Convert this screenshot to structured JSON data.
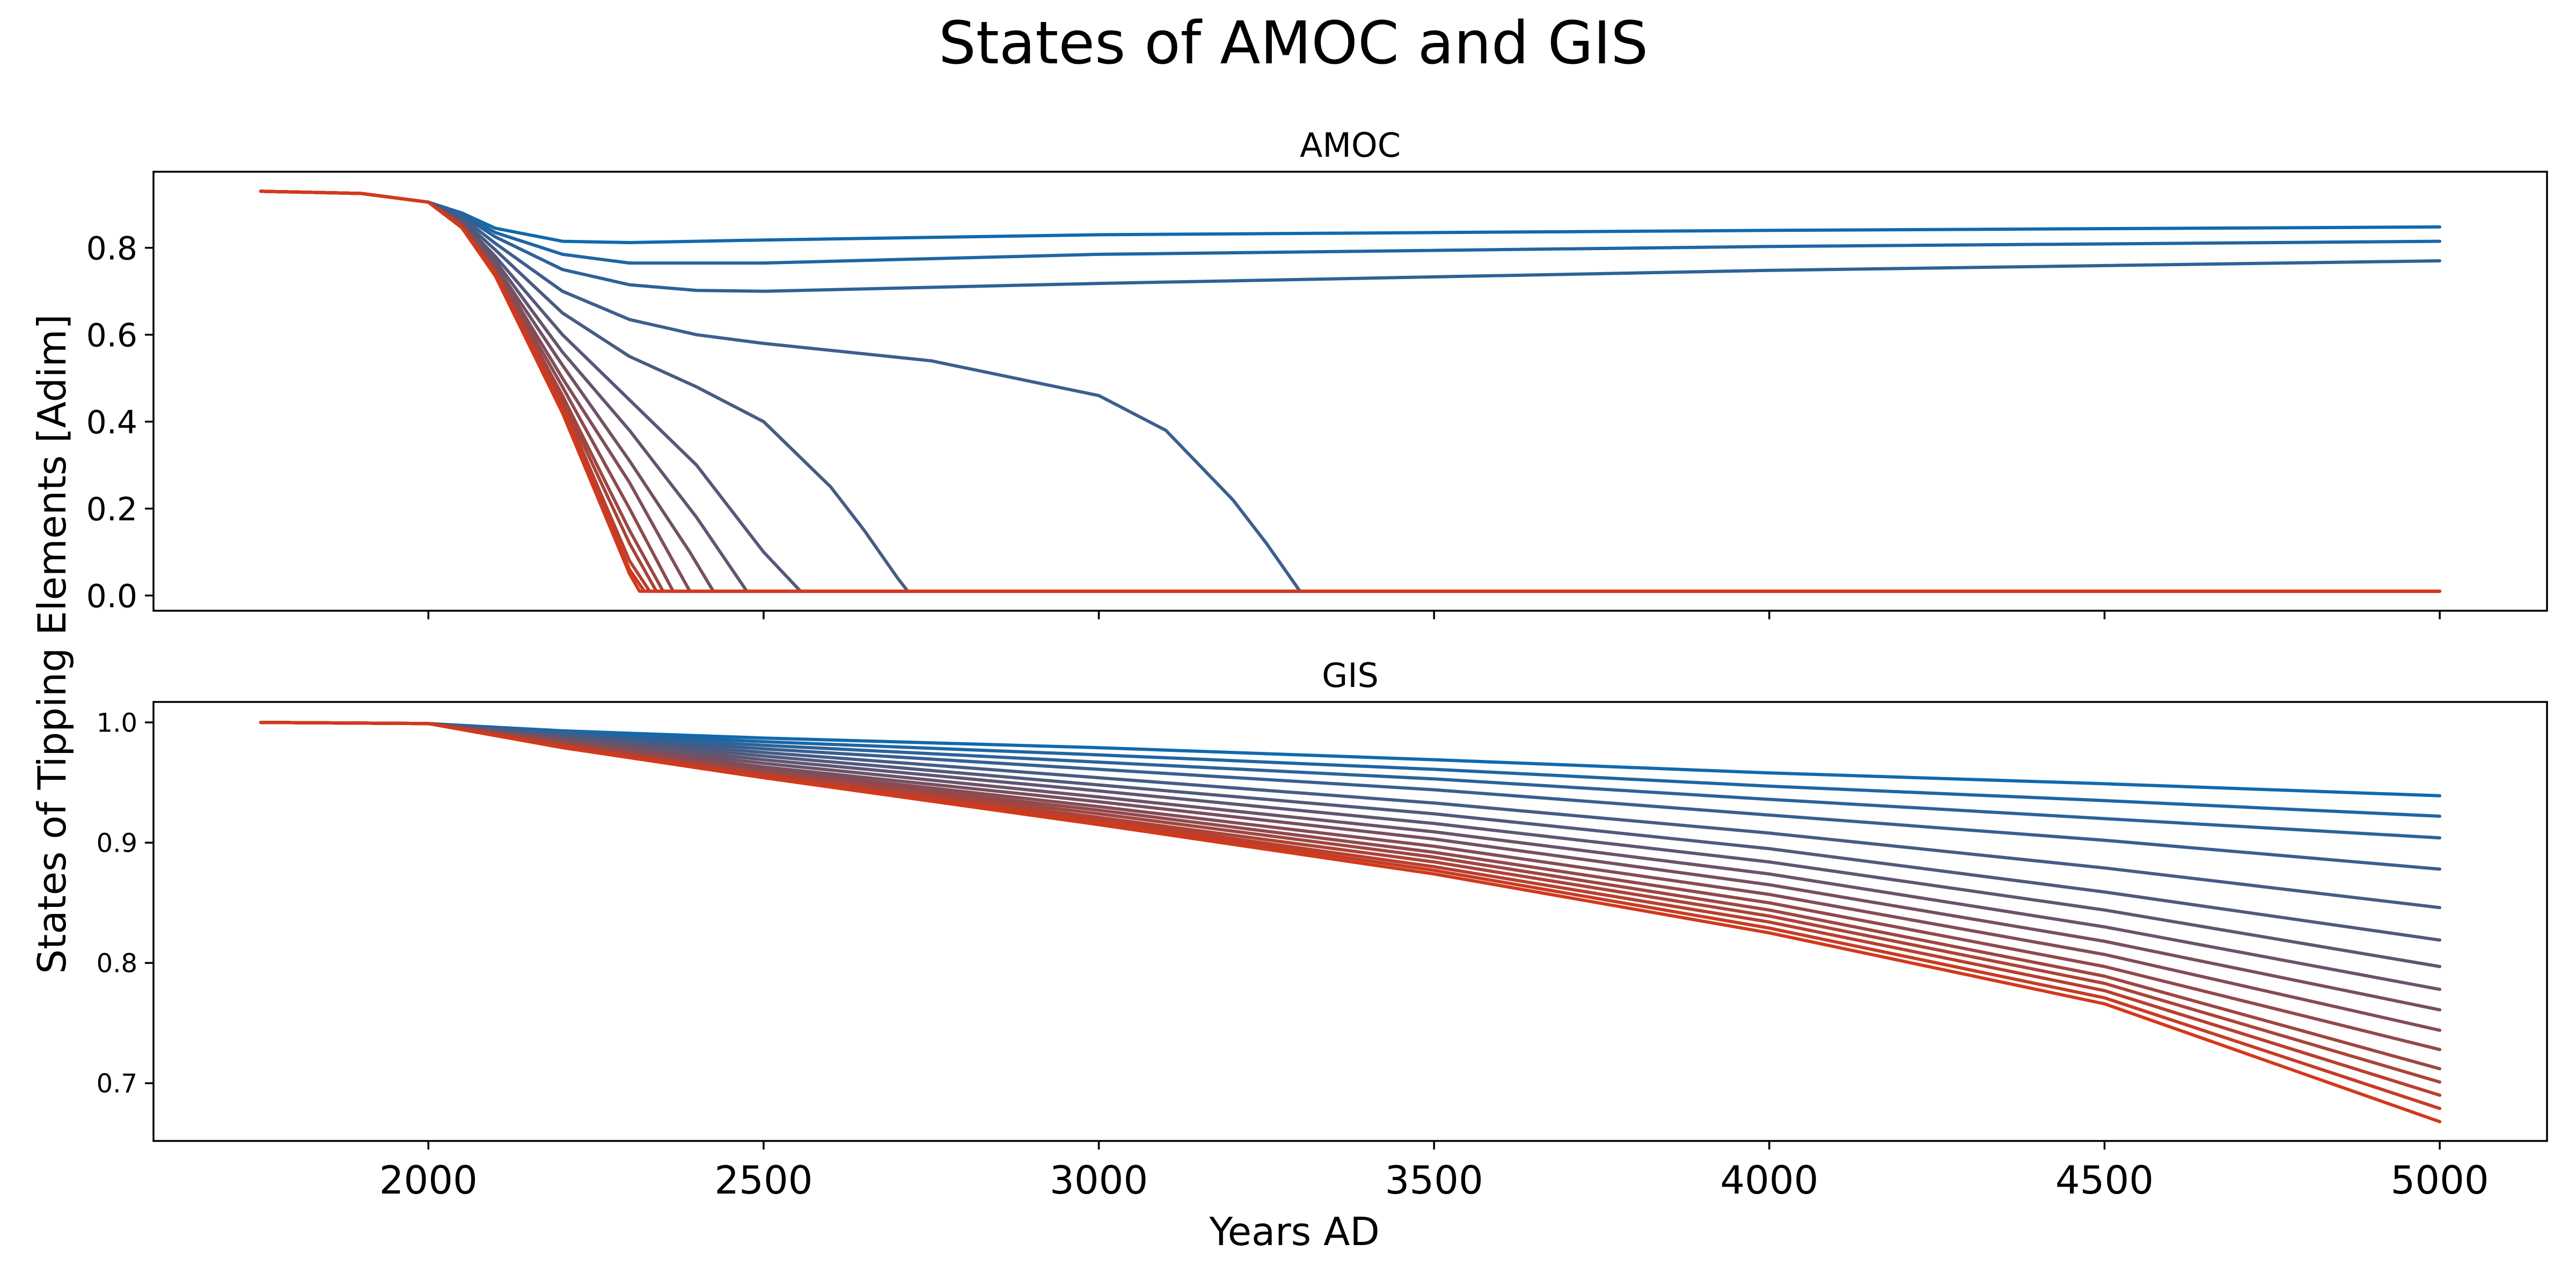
{
  "figure": {
    "title": "States of AMOC and GIS",
    "shared_ylabel": "States of Tipping Elements [Adim]",
    "shared_xlabel": "Years AD",
    "color_start": "#1169ad",
    "color_end": "#d3391b"
  },
  "chart_data": [
    {
      "type": "line",
      "title": "AMOC",
      "xlabel": "Years AD",
      "ylabel": "States of Tipping Elements [Adim]",
      "xlim": [
        1590,
        5160
      ],
      "ylim": [
        -0.035,
        0.975
      ],
      "xticks": [
        2000,
        2500,
        3000,
        3500,
        4000,
        4500,
        5000
      ],
      "xtick_labels_shown": false,
      "yticks": [
        0.0,
        0.2,
        0.4,
        0.6,
        0.8
      ],
      "ytick_labels": [
        "0.0",
        "0.2",
        "0.4",
        "0.6",
        "0.8"
      ],
      "grid": false,
      "legend": "none",
      "series_count": 15,
      "series": [
        {
          "x": [
            1750,
            1900,
            2000,
            2050,
            2100,
            2200,
            2300,
            2500,
            3000,
            4000,
            5000
          ],
          "values": [
            0.93,
            0.925,
            0.905,
            0.88,
            0.845,
            0.815,
            0.812,
            0.818,
            0.83,
            0.84,
            0.848
          ]
        },
        {
          "x": [
            1750,
            1900,
            2000,
            2050,
            2100,
            2200,
            2300,
            2500,
            3000,
            4000,
            5000
          ],
          "values": [
            0.93,
            0.925,
            0.905,
            0.878,
            0.835,
            0.785,
            0.765,
            0.765,
            0.785,
            0.803,
            0.815
          ]
        },
        {
          "x": [
            1750,
            1900,
            2000,
            2050,
            2100,
            2200,
            2300,
            2400,
            2500,
            3000,
            4000,
            5000
          ],
          "values": [
            0.93,
            0.925,
            0.905,
            0.875,
            0.825,
            0.75,
            0.715,
            0.702,
            0.7,
            0.718,
            0.748,
            0.77
          ]
        },
        {
          "x": [
            1750,
            1900,
            2000,
            2050,
            2100,
            2200,
            2300,
            2400,
            2500,
            2750,
            3000,
            3100,
            3200,
            3250,
            3300,
            5000
          ],
          "values": [
            0.93,
            0.925,
            0.905,
            0.87,
            0.81,
            0.7,
            0.635,
            0.6,
            0.58,
            0.54,
            0.46,
            0.38,
            0.22,
            0.12,
            0.01,
            0.01
          ]
        },
        {
          "x": [
            1750,
            1900,
            2000,
            2050,
            2100,
            2200,
            2300,
            2400,
            2500,
            2600,
            2650,
            2700,
            2715,
            5000
          ],
          "values": [
            0.93,
            0.925,
            0.905,
            0.865,
            0.795,
            0.65,
            0.55,
            0.48,
            0.4,
            0.25,
            0.15,
            0.04,
            0.01,
            0.01
          ]
        },
        {
          "x": [
            1750,
            1900,
            2000,
            2050,
            2100,
            2200,
            2300,
            2400,
            2500,
            2555,
            5000
          ],
          "values": [
            0.93,
            0.925,
            0.905,
            0.86,
            0.78,
            0.6,
            0.45,
            0.3,
            0.1,
            0.01,
            0.01
          ]
        },
        {
          "x": [
            1750,
            1900,
            2000,
            2050,
            2100,
            2200,
            2300,
            2400,
            2475,
            5000
          ],
          "values": [
            0.93,
            0.925,
            0.905,
            0.858,
            0.77,
            0.56,
            0.38,
            0.18,
            0.01,
            0.01
          ]
        },
        {
          "x": [
            1750,
            1900,
            2000,
            2050,
            2100,
            2200,
            2300,
            2390,
            2425,
            5000
          ],
          "values": [
            0.93,
            0.925,
            0.905,
            0.856,
            0.76,
            0.53,
            0.31,
            0.1,
            0.01,
            0.01
          ]
        },
        {
          "x": [
            1750,
            1900,
            2000,
            2050,
            2100,
            2200,
            2300,
            2390,
            5000
          ],
          "values": [
            0.93,
            0.925,
            0.905,
            0.854,
            0.755,
            0.5,
            0.26,
            0.01,
            0.01
          ]
        },
        {
          "x": [
            1750,
            1900,
            2000,
            2050,
            2100,
            2200,
            2300,
            2365,
            5000
          ],
          "values": [
            0.93,
            0.925,
            0.905,
            0.852,
            0.75,
            0.48,
            0.2,
            0.01,
            0.01
          ]
        },
        {
          "x": [
            1750,
            1900,
            2000,
            2050,
            2100,
            2200,
            2300,
            2350,
            5000
          ],
          "values": [
            0.93,
            0.925,
            0.905,
            0.85,
            0.745,
            0.46,
            0.15,
            0.01,
            0.01
          ]
        },
        {
          "x": [
            1750,
            1900,
            2000,
            2050,
            2100,
            2200,
            2300,
            2340,
            5000
          ],
          "values": [
            0.93,
            0.925,
            0.905,
            0.849,
            0.742,
            0.45,
            0.12,
            0.01,
            0.01
          ]
        },
        {
          "x": [
            1750,
            1900,
            2000,
            2050,
            2100,
            2200,
            2300,
            2330,
            5000
          ],
          "values": [
            0.93,
            0.925,
            0.905,
            0.848,
            0.74,
            0.44,
            0.08,
            0.01,
            0.01
          ]
        },
        {
          "x": [
            1750,
            1900,
            2000,
            2050,
            2100,
            2200,
            2300,
            2322,
            5000
          ],
          "values": [
            0.93,
            0.925,
            0.905,
            0.847,
            0.738,
            0.43,
            0.06,
            0.01,
            0.01
          ]
        },
        {
          "x": [
            1750,
            1900,
            2000,
            2050,
            2100,
            2200,
            2300,
            2315,
            5000
          ],
          "values": [
            0.93,
            0.925,
            0.905,
            0.846,
            0.735,
            0.42,
            0.05,
            0.01,
            0.01
          ]
        }
      ]
    },
    {
      "type": "line",
      "title": "GIS",
      "xlabel": "Years AD",
      "ylabel": "States of Tipping Elements [Adim]",
      "xlim": [
        1590,
        5160
      ],
      "ylim": [
        0.652,
        1.017
      ],
      "xticks": [
        2000,
        2500,
        3000,
        3500,
        4000,
        4500,
        5000
      ],
      "xtick_labels": [
        "2000",
        "2500",
        "3000",
        "3500",
        "4000",
        "4500",
        "5000"
      ],
      "yticks": [
        0.7,
        0.8,
        0.9,
        1.0
      ],
      "ytick_labels": [
        "0.7",
        "0.8",
        "0.9",
        "1.0"
      ],
      "grid": false,
      "legend": "none",
      "series_count": 16,
      "series": [
        {
          "x": [
            1750,
            2000,
            2200,
            2500,
            3000,
            3500,
            4000,
            4500,
            5000
          ],
          "values": [
            1.0,
            0.999,
            0.993,
            0.987,
            0.979,
            0.969,
            0.958,
            0.949,
            0.939
          ]
        },
        {
          "x": [
            1750,
            2000,
            2200,
            2500,
            3000,
            3500,
            4000,
            4500,
            5000
          ],
          "values": [
            1.0,
            0.999,
            0.992,
            0.984,
            0.973,
            0.961,
            0.947,
            0.935,
            0.922
          ]
        },
        {
          "x": [
            1750,
            2000,
            2200,
            2500,
            3000,
            3500,
            4000,
            4500,
            5000
          ],
          "values": [
            1.0,
            0.999,
            0.991,
            0.981,
            0.967,
            0.953,
            0.936,
            0.92,
            0.904
          ]
        },
        {
          "x": [
            1750,
            2000,
            2200,
            2500,
            3000,
            3500,
            4000,
            4500,
            5000
          ],
          "values": [
            1.0,
            0.999,
            0.99,
            0.978,
            0.961,
            0.944,
            0.923,
            0.902,
            0.878
          ]
        },
        {
          "x": [
            1750,
            2000,
            2200,
            2500,
            3000,
            3500,
            4000,
            4500,
            5000
          ],
          "values": [
            1.0,
            0.999,
            0.989,
            0.975,
            0.954,
            0.933,
            0.908,
            0.879,
            0.846
          ]
        },
        {
          "x": [
            1750,
            2000,
            2200,
            2500,
            3000,
            3500,
            4000,
            4500,
            5000
          ],
          "values": [
            1.0,
            0.999,
            0.988,
            0.972,
            0.948,
            0.924,
            0.895,
            0.859,
            0.819
          ]
        },
        {
          "x": [
            1750,
            2000,
            2200,
            2500,
            3000,
            3500,
            4000,
            4500,
            5000
          ],
          "values": [
            1.0,
            0.999,
            0.987,
            0.969,
            0.943,
            0.916,
            0.884,
            0.844,
            0.797
          ]
        },
        {
          "x": [
            1750,
            2000,
            2200,
            2500,
            3000,
            3500,
            4000,
            4500,
            5000
          ],
          "values": [
            1.0,
            0.999,
            0.986,
            0.966,
            0.938,
            0.909,
            0.874,
            0.83,
            0.778
          ]
        },
        {
          "x": [
            1750,
            2000,
            2200,
            2500,
            3000,
            3500,
            4000,
            4500,
            5000
          ],
          "values": [
            1.0,
            0.999,
            0.985,
            0.963,
            0.934,
            0.903,
            0.865,
            0.818,
            0.761
          ]
        },
        {
          "x": [
            1750,
            2000,
            2200,
            2500,
            3000,
            3500,
            4000,
            4500,
            5000
          ],
          "values": [
            1.0,
            0.999,
            0.984,
            0.961,
            0.93,
            0.897,
            0.857,
            0.807,
            0.744
          ]
        },
        {
          "x": [
            1750,
            2000,
            2200,
            2500,
            3000,
            3500,
            4000,
            4500,
            5000
          ],
          "values": [
            1.0,
            0.999,
            0.983,
            0.959,
            0.927,
            0.892,
            0.85,
            0.797,
            0.728
          ]
        },
        {
          "x": [
            1750,
            2000,
            2200,
            2500,
            3000,
            3500,
            4000,
            4500,
            5000
          ],
          "values": [
            1.0,
            0.999,
            0.982,
            0.958,
            0.924,
            0.888,
            0.844,
            0.789,
            0.712
          ]
        },
        {
          "x": [
            1750,
            2000,
            2200,
            2500,
            3000,
            3500,
            4000,
            4500,
            5000
          ],
          "values": [
            1.0,
            0.999,
            0.981,
            0.957,
            0.921,
            0.884,
            0.839,
            0.783,
            0.701
          ]
        },
        {
          "x": [
            1750,
            2000,
            2200,
            2500,
            3000,
            3500,
            4000,
            4500,
            5000
          ],
          "values": [
            1.0,
            0.999,
            0.98,
            0.956,
            0.919,
            0.88,
            0.834,
            0.777,
            0.69
          ]
        },
        {
          "x": [
            1750,
            2000,
            2200,
            2500,
            3000,
            3500,
            4000,
            4500,
            5000
          ],
          "values": [
            1.0,
            0.999,
            0.98,
            0.955,
            0.917,
            0.877,
            0.829,
            0.771,
            0.679
          ]
        },
        {
          "x": [
            1750,
            2000,
            2200,
            2500,
            3000,
            3500,
            4000,
            4500,
            5000
          ],
          "values": [
            1.0,
            0.999,
            0.979,
            0.954,
            0.915,
            0.874,
            0.825,
            0.766,
            0.668
          ]
        }
      ]
    }
  ]
}
